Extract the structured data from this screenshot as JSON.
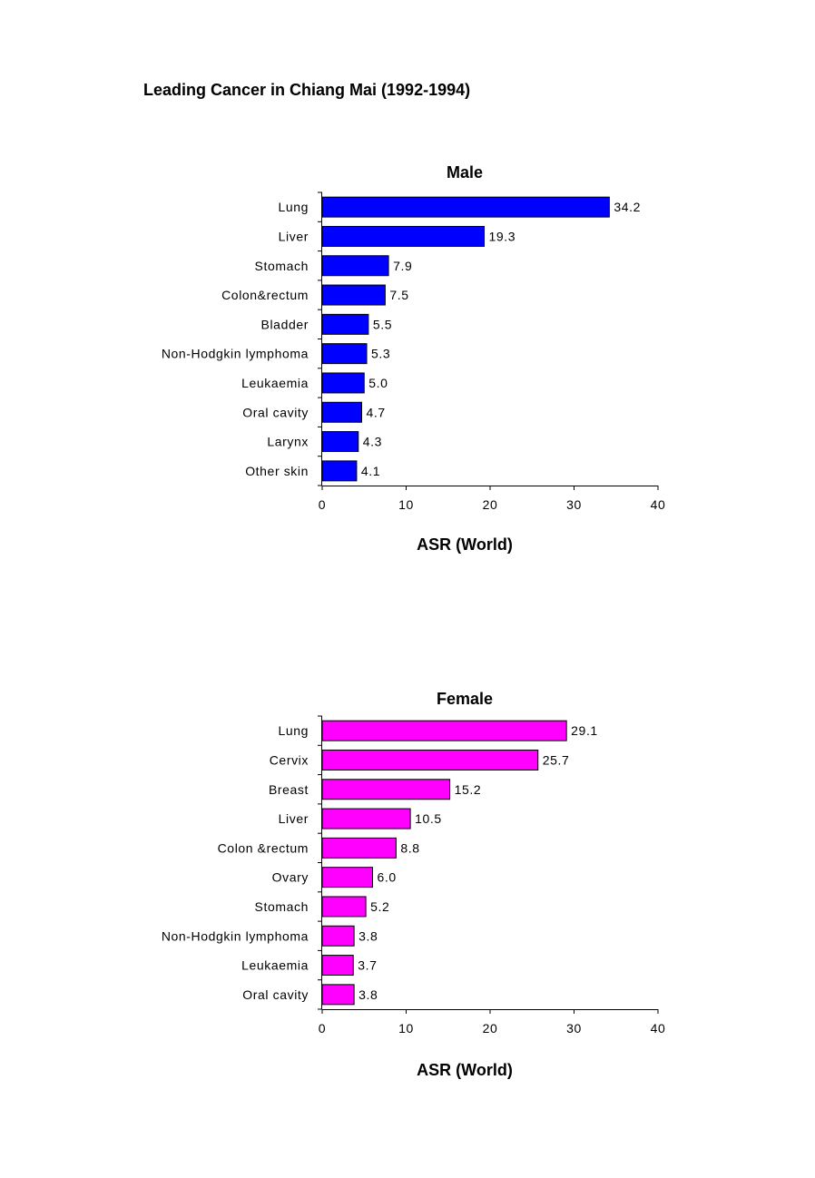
{
  "page": {
    "title": "Leading Cancer in Chiang Mai (1992-1994)"
  },
  "chart_data": [
    {
      "type": "bar",
      "orientation": "horizontal",
      "title": "Male",
      "xlabel": "ASR (World)",
      "ylabel": "",
      "xlim": [
        0,
        40
      ],
      "xticks": [
        0,
        10,
        20,
        30,
        40
      ],
      "categories": [
        "Lung",
        "Liver",
        "Stomach",
        "Colon&rectum",
        "Bladder",
        "Non-Hodgkin lymphoma",
        "Leukaemia",
        "Oral cavity",
        "Larynx",
        "Other skin"
      ],
      "values": [
        34.2,
        19.3,
        7.9,
        7.5,
        5.5,
        5.3,
        5.0,
        4.7,
        4.3,
        4.1
      ],
      "value_labels": [
        "34.2",
        "19.3",
        "7.9",
        "7.5",
        "5.5",
        "5.3",
        "5.0",
        "4.7",
        "4.3",
        "4.1"
      ],
      "color": "#0000FF",
      "grid": false
    },
    {
      "type": "bar",
      "orientation": "horizontal",
      "title": "Female",
      "xlabel": "ASR (World)",
      "ylabel": "",
      "xlim": [
        0,
        40
      ],
      "xticks": [
        0,
        10,
        20,
        30,
        40
      ],
      "categories": [
        "Lung",
        "Cervix",
        "Breast",
        "Liver",
        "Colon &rectum",
        "Ovary",
        "Stomach",
        "Non-Hodgkin lymphoma",
        "Leukaemia",
        "Oral cavity"
      ],
      "values": [
        29.1,
        25.7,
        15.2,
        10.5,
        8.8,
        6.0,
        5.2,
        3.8,
        3.7,
        3.8
      ],
      "value_labels": [
        "29.1",
        "25.7",
        "15.2",
        "10.5",
        "8.8",
        "6.0",
        "5.2",
        "3.8",
        "3.7",
        "3.8"
      ],
      "color": "#FF00FF",
      "grid": false
    }
  ]
}
